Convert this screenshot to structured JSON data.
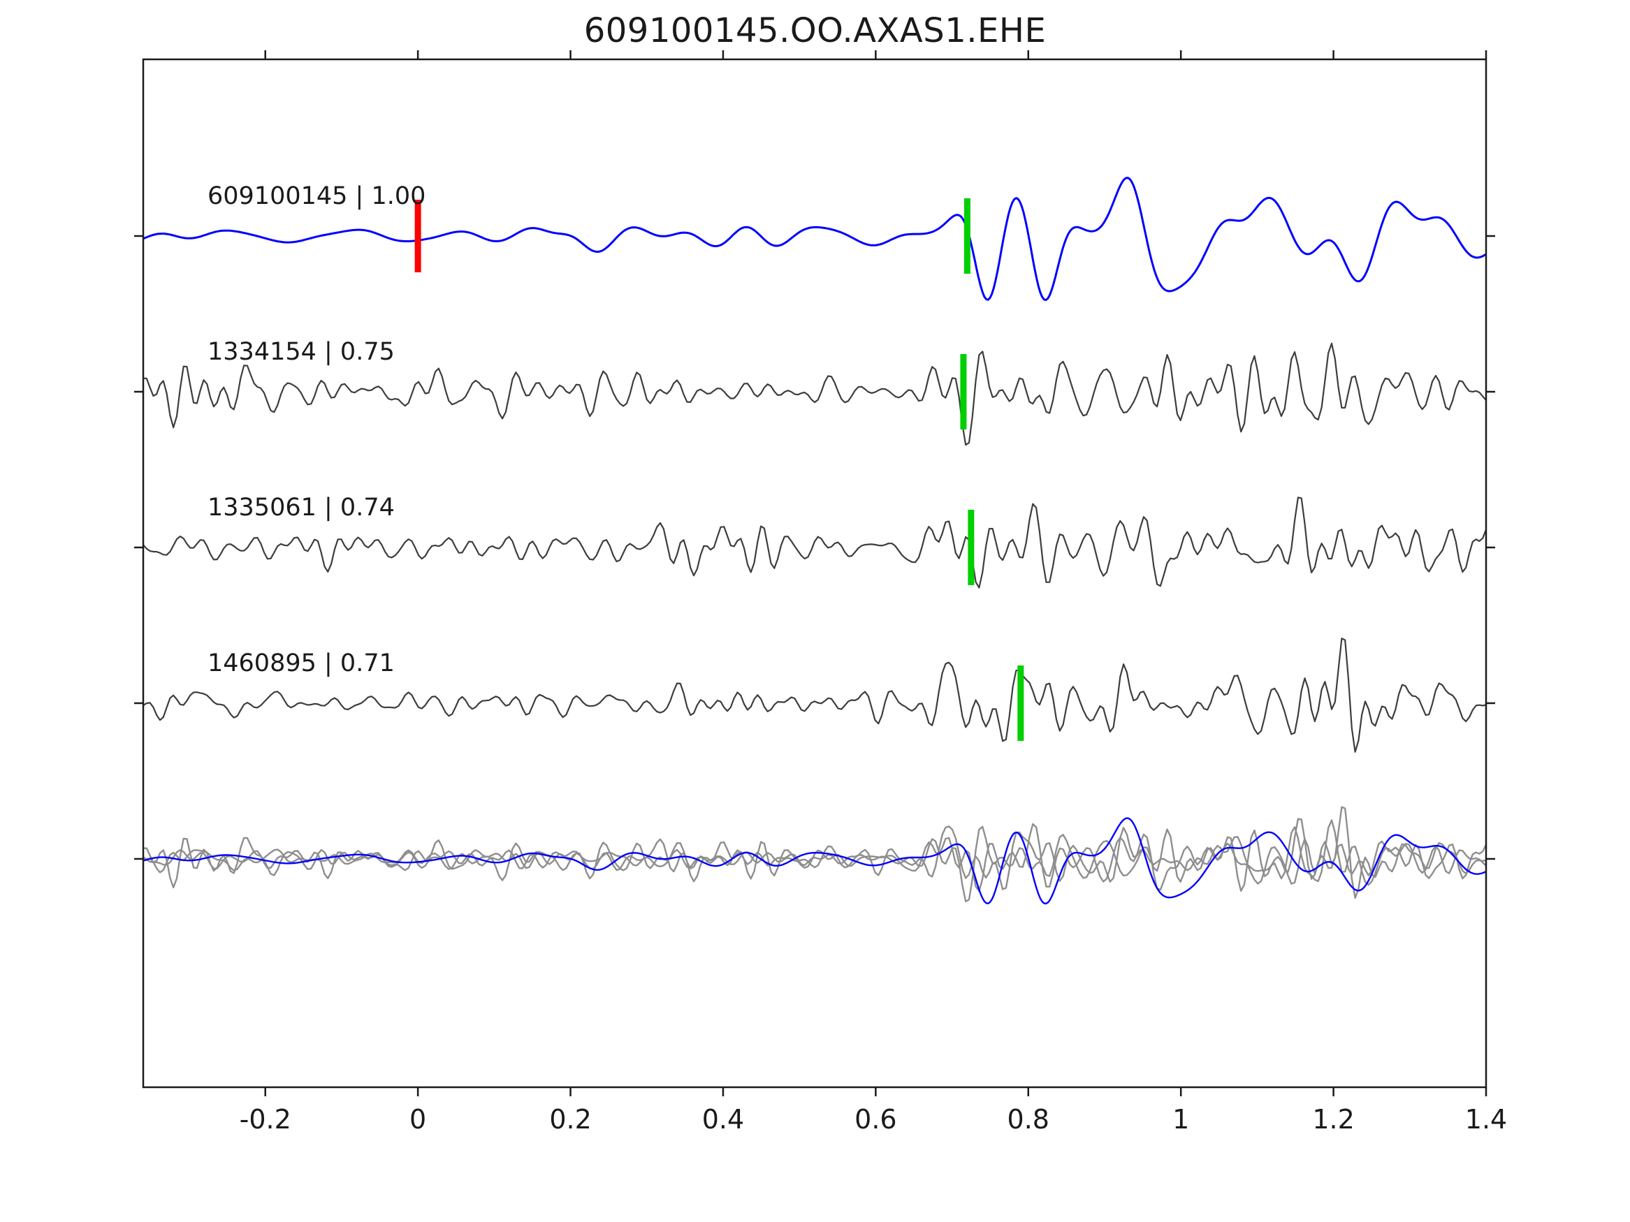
{
  "title": "609100145.OO.AXAS1.EHE",
  "chart_data": {
    "type": "line",
    "subtype": "seismic-waveform-template-match",
    "title": "609100145.OO.AXAS1.EHE",
    "xlabel": "",
    "ylabel": "",
    "grid": false,
    "legend": "none",
    "x_range": [
      -0.36,
      1.4
    ],
    "x_ticks": [
      {
        "value": -0.2,
        "label": "-0.2"
      },
      {
        "value": 0,
        "label": "0"
      },
      {
        "value": 0.2,
        "label": "0.2"
      },
      {
        "value": 0.4,
        "label": "0.4"
      },
      {
        "value": 0.6,
        "label": "0.6"
      },
      {
        "value": 0.8,
        "label": "0.8"
      },
      {
        "value": 1,
        "label": "1"
      },
      {
        "value": 1.2,
        "label": "1.2"
      },
      {
        "value": 1.4,
        "label": "1.4"
      }
    ],
    "colors": {
      "template": "#0000ff",
      "detection": "#3d3d3d",
      "overlay_detection": "#8e8e8e",
      "pick_marker": "#00cf00",
      "origin_marker": "#ff0000",
      "axis": "#1a1a1a",
      "text": "#1a1a1a",
      "background": "#ffffff"
    },
    "rows": [
      {
        "kind": "template",
        "label": "609100145 | 1.00",
        "event_id": "609100145",
        "correlation": 1.0,
        "color_key": "template",
        "origin_marker": {
          "x": 0.0,
          "color_key": "origin_marker"
        },
        "pick_marker": {
          "x": 0.72,
          "color_key": "pick_marker"
        },
        "synth": {
          "seed": 20241,
          "ncomp": 50,
          "fmin": 4.5,
          "fmax": 15,
          "rolloff": 0.3,
          "npts": 720,
          "base": 13,
          "bumps": [
            [
              0.2,
              0.06,
              18
            ],
            [
              0.45,
              0.08,
              10
            ],
            [
              0.75,
              0.04,
              90
            ],
            [
              0.82,
              0.05,
              140
            ],
            [
              0.95,
              0.05,
              120
            ],
            [
              1.05,
              0.07,
              100
            ],
            [
              1.2,
              0.1,
              50
            ],
            [
              1.33,
              0.1,
              25
            ]
          ]
        }
      },
      {
        "kind": "detection",
        "label": "1334154 | 0.75",
        "event_id": "1334154",
        "correlation": 0.75,
        "color_key": "detection",
        "pick_marker": {
          "x": 0.715,
          "color_key": "pick_marker"
        },
        "synth": {
          "seed": 7711,
          "ncomp": 100,
          "fmin": 7,
          "fmax": 42,
          "rolloff": 0.15,
          "npts": 400,
          "base": 32,
          "bumps": [
            [
              -0.32,
              0.1,
              20
            ],
            [
              0.1,
              0.1,
              10
            ],
            [
              0.7,
              0.05,
              85
            ],
            [
              0.82,
              0.06,
              75
            ],
            [
              0.97,
              0.07,
              55
            ],
            [
              1.12,
              0.09,
              70
            ],
            [
              1.28,
              0.08,
              40
            ]
          ]
        }
      },
      {
        "kind": "detection",
        "label": "1335061 | 0.74",
        "event_id": "1335061",
        "correlation": 0.74,
        "color_key": "detection",
        "pick_marker": {
          "x": 0.725,
          "color_key": "pick_marker"
        },
        "synth": {
          "seed": 8322,
          "ncomp": 100,
          "fmin": 7,
          "fmax": 42,
          "rolloff": 0.15,
          "npts": 400,
          "base": 34,
          "bumps": [
            [
              0.3,
              0.1,
              22
            ],
            [
              0.45,
              0.07,
              15
            ],
            [
              0.7,
              0.05,
              90
            ],
            [
              0.82,
              0.06,
              80
            ],
            [
              0.97,
              0.06,
              50
            ],
            [
              1.1,
              0.08,
              60
            ],
            [
              1.3,
              0.1,
              50
            ]
          ]
        }
      },
      {
        "kind": "detection",
        "label": "1460895 | 0.71",
        "event_id": "1460895",
        "correlation": 0.71,
        "color_key": "detection",
        "pick_marker": {
          "x": 0.79,
          "color_key": "pick_marker"
        },
        "synth": {
          "seed": 9533,
          "ncomp": 100,
          "fmin": 7,
          "fmax": 42,
          "rolloff": 0.15,
          "npts": 400,
          "base": 34,
          "bumps": [
            [
              0.1,
              0.1,
              8
            ],
            [
              0.68,
              0.05,
              75
            ],
            [
              0.78,
              0.06,
              95
            ],
            [
              0.9,
              0.05,
              45
            ],
            [
              1.1,
              0.08,
              45
            ],
            [
              1.2,
              0.08,
              55
            ],
            [
              1.32,
              0.08,
              30
            ]
          ]
        }
      },
      {
        "kind": "overlay",
        "label": "",
        "members": [
          {
            "row": 1,
            "color_key": "overlay_detection",
            "scale": 0.8
          },
          {
            "row": 2,
            "color_key": "overlay_detection",
            "scale": 0.8
          },
          {
            "row": 3,
            "color_key": "overlay_detection",
            "scale": 0.8
          },
          {
            "row": 0,
            "color_key": "template",
            "scale": 0.7
          }
        ]
      }
    ]
  }
}
